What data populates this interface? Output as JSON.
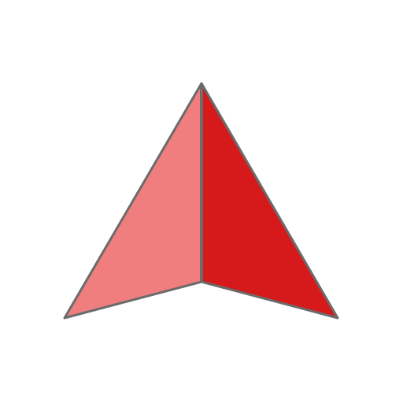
{
  "icon": {
    "name": "navigation-arrow-icon",
    "colors": {
      "left_face": "#F07E7E",
      "right_face": "#D61A1B",
      "outline": "#6B6B6B",
      "background": "#FFFFFF"
    }
  }
}
